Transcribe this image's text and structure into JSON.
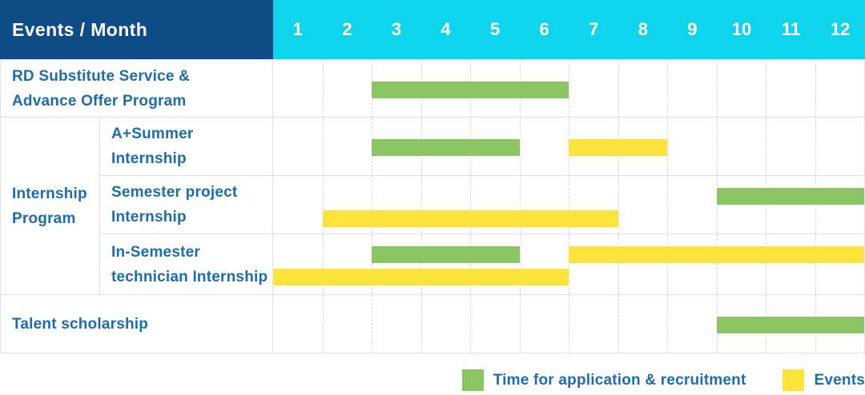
{
  "header": {
    "title": "Events / Month"
  },
  "colors": {
    "header_bg": "#0F4C85",
    "months_bg": "#0ED5EC",
    "label_text": "#1C6DAD",
    "grid_line": "#D8D8D8",
    "row_border": "#E3E3E3"
  },
  "chart_data": {
    "type": "gantt",
    "title": "Events / Month",
    "x_categories": [
      "1",
      "2",
      "3",
      "4",
      "5",
      "6",
      "7",
      "8",
      "9",
      "10",
      "11",
      "12"
    ],
    "x_range": [
      1,
      12
    ],
    "grid": "vertical-dashed",
    "legend_position": "bottom-right",
    "series_colors": {
      "application": "#8BC463",
      "events": "#FDE33C"
    },
    "rows": [
      {
        "group": null,
        "label": "RD Substitute Service & Advance Offer Program",
        "label_lines": [
          "RD Substitute Service &",
          "Advance Offer Program"
        ],
        "lines": 1,
        "bars": [
          {
            "series": "application",
            "start": 3,
            "end": 6,
            "line": 1
          }
        ]
      },
      {
        "group": "Internship Program",
        "label": "A+Summer Internship",
        "label_lines": [
          "A+Summer",
          "Internship"
        ],
        "lines": 1,
        "bars": [
          {
            "series": "application",
            "start": 3,
            "end": 5,
            "line": 1
          },
          {
            "series": "events",
            "start": 7,
            "end": 8,
            "line": 1
          }
        ]
      },
      {
        "group": "Internship Program",
        "label": "Semester project Internship",
        "label_lines": [
          "Semester project",
          "Internship"
        ],
        "lines": 2,
        "bars": [
          {
            "series": "application",
            "start": 10,
            "end": 12,
            "line": 1
          },
          {
            "series": "events",
            "start": 2,
            "end": 7,
            "line": 2
          }
        ]
      },
      {
        "group": "Internship Program",
        "label": "In-Semester technician Internship",
        "label_lines": [
          "In-Semester",
          "technician Internship"
        ],
        "lines": 2,
        "bars": [
          {
            "series": "application",
            "start": 3,
            "end": 5,
            "line": 1
          },
          {
            "series": "events",
            "start": 7,
            "end": 12,
            "line": 1
          },
          {
            "series": "events",
            "start": 1,
            "end": 6,
            "line": 2
          }
        ]
      },
      {
        "group": null,
        "label": "Talent scholarship",
        "label_lines": [
          "Talent scholarship"
        ],
        "lines": 1,
        "bars": [
          {
            "series": "application",
            "start": 10,
            "end": 12,
            "line": 1
          }
        ]
      }
    ]
  },
  "legend": {
    "items": [
      {
        "series": "application",
        "label": "Time for application & recruitment"
      },
      {
        "series": "events",
        "label": "Events"
      }
    ]
  }
}
